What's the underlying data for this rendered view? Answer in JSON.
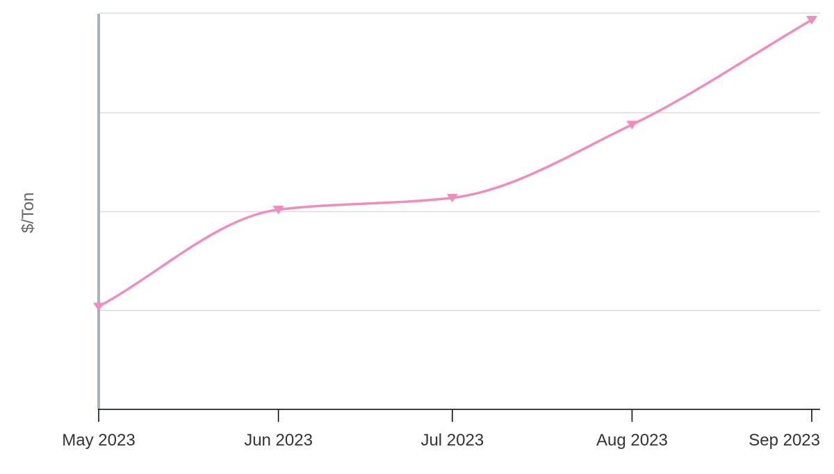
{
  "chart_data": {
    "type": "line",
    "title": "",
    "xlabel": "",
    "ylabel": "$/Ton",
    "categories": [
      "May 2023",
      "Jun 2023",
      "Jul 2023",
      "Aug 2023",
      "Sep 2023"
    ],
    "dates": [
      "2023-05-01",
      "2023-06-01",
      "2023-07-01",
      "2023-08-01",
      "2023-09-01"
    ],
    "series": [
      {
        "values": [
          52,
          101,
          107,
          144,
          197
        ],
        "color": "#f08cbe",
        "marker": "triangle-down",
        "smooth": true
      }
    ],
    "ylim": [
      0,
      200
    ],
    "ytick_step": 50,
    "y_tick_labels_shown": false,
    "grid": {
      "horizontal": true,
      "vertical": false,
      "color": "#dddddd"
    },
    "colors": {
      "y_axis_line": "#a7b3b8",
      "x_axis_line": "#000000",
      "tick_label": "#333333",
      "axis_title": "#666666"
    },
    "legend": "none"
  }
}
